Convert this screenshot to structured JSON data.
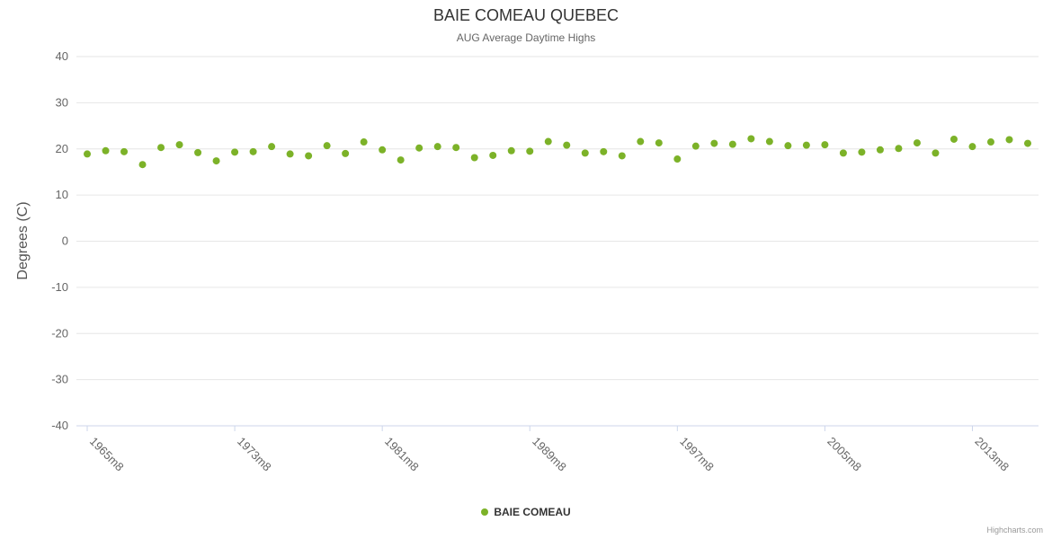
{
  "chart_data": {
    "type": "scatter",
    "title": "BAIE COMEAU QUEBEC",
    "subtitle": "AUG Average Daytime Highs",
    "ylabel": "Degrees (C)",
    "ylim": [
      -40,
      40
    ],
    "y_tick_interval": 10,
    "x_start_year": 1965,
    "x_label_suffix": "m8",
    "x_tick_years": [
      1965,
      1973,
      1981,
      1989,
      1997,
      2005,
      2013
    ],
    "grid": true,
    "legend_position": "bottom-center",
    "series": [
      {
        "name": "BAIE COMEAU",
        "color": "#7cb228",
        "values": [
          18.9,
          19.6,
          19.4,
          16.6,
          20.3,
          20.9,
          19.2,
          17.4,
          19.3,
          19.4,
          20.5,
          18.9,
          18.5,
          20.7,
          19.0,
          21.5,
          19.8,
          17.6,
          20.2,
          20.5,
          20.3,
          18.1,
          18.6,
          19.6,
          19.5,
          21.6,
          20.8,
          19.1,
          19.4,
          18.5,
          21.6,
          21.3,
          17.8,
          20.6,
          21.2,
          21.0,
          22.2,
          21.6,
          20.7,
          20.8,
          20.9,
          19.1,
          19.3,
          19.8,
          20.1,
          21.3,
          19.1,
          22.1,
          20.5,
          21.5,
          22.0,
          21.2
        ]
      }
    ]
  },
  "legend": {
    "label": "BAIE COMEAU"
  },
  "credits": "Highcharts.com",
  "colors": {
    "point": "#7cb228",
    "gridline": "#e6e6e6",
    "axis_line": "#ccd6eb",
    "tick_label": "#666666",
    "title": "#333333"
  }
}
